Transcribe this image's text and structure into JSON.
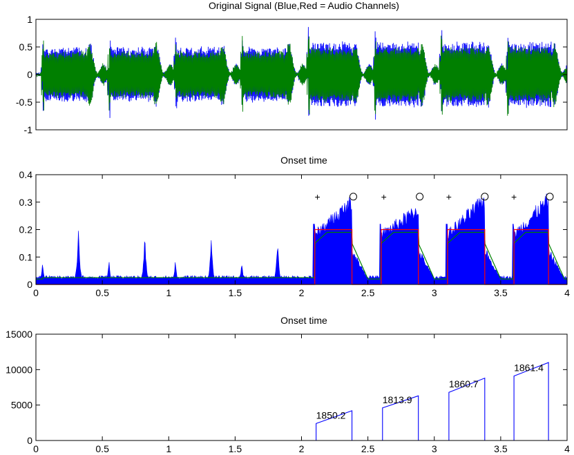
{
  "chart_data": [
    {
      "type": "line",
      "title": "Original Signal (Blue,Red = Audio Channels)",
      "xlim": [
        0,
        4
      ],
      "ylim": [
        -1,
        1
      ],
      "xticks": [],
      "yticks": [
        "-1",
        "-0.5",
        "0",
        "0.5",
        "1"
      ],
      "grid": false,
      "colors": {
        "channel1": "#0000ff",
        "channel2": "#007f00"
      },
      "note_bursts": [
        {
          "start": 0.05,
          "end": 0.38,
          "amp": 0.38
        },
        {
          "start": 0.55,
          "end": 0.88,
          "amp": 0.38
        },
        {
          "start": 1.05,
          "end": 1.38,
          "amp": 0.38
        },
        {
          "start": 1.55,
          "end": 1.88,
          "amp": 0.38
        },
        {
          "start": 2.05,
          "end": 2.38,
          "amp": 0.45
        },
        {
          "start": 2.55,
          "end": 2.88,
          "amp": 0.45
        },
        {
          "start": 3.05,
          "end": 3.38,
          "amp": 0.45
        },
        {
          "start": 3.55,
          "end": 3.88,
          "amp": 0.45
        }
      ]
    },
    {
      "type": "area",
      "title": "Onset time",
      "xlim": [
        0,
        4
      ],
      "ylim": [
        0,
        0.4
      ],
      "xticks": [
        "0",
        "0.5",
        "1",
        "1.5",
        "2",
        "2.5",
        "3",
        "3.5",
        "4"
      ],
      "yticks": [
        "0",
        "0.1",
        "0.2",
        "0.3",
        "0.4"
      ],
      "colors": {
        "energy": "#0000ff",
        "smoothed": "#007f00",
        "gate": "#ff0000"
      },
      "spikes": [
        {
          "x": 0.05,
          "peak": 0.09
        },
        {
          "x": 0.32,
          "peak": 0.22
        },
        {
          "x": 0.55,
          "peak": 0.09
        },
        {
          "x": 0.82,
          "peak": 0.195
        },
        {
          "x": 1.05,
          "peak": 0.09
        },
        {
          "x": 1.32,
          "peak": 0.19
        },
        {
          "x": 1.55,
          "peak": 0.09
        },
        {
          "x": 1.82,
          "peak": 0.18
        }
      ],
      "segments": [
        {
          "start": 2.1,
          "end": 2.38,
          "peak": 0.33
        },
        {
          "start": 2.6,
          "end": 2.88,
          "peak": 0.3
        },
        {
          "start": 3.1,
          "end": 3.38,
          "peak": 0.34
        },
        {
          "start": 3.6,
          "end": 3.86,
          "peak": 0.34
        }
      ],
      "gate_level": 0.2,
      "onset_markers": [
        2.12,
        2.62,
        3.11,
        3.6
      ],
      "offset_markers": [
        2.39,
        2.89,
        3.38,
        3.87
      ],
      "marker_y": 0.32,
      "onset_symbol": "+",
      "offset_symbol": "○"
    },
    {
      "type": "line",
      "title": "Onset time",
      "xlim": [
        0,
        4
      ],
      "ylim": [
        0,
        15000
      ],
      "xticks": [
        "0",
        "0.5",
        "1",
        "1.5",
        "2",
        "2.5",
        "3",
        "3.5",
        "4"
      ],
      "yticks": [
        "0",
        "5000",
        "10000",
        "15000"
      ],
      "colors": {
        "line": "#0000ff"
      },
      "ramps": [
        {
          "start": 2.11,
          "end": 2.38,
          "y0": 2400,
          "y1": 4200,
          "label": "1850.2"
        },
        {
          "start": 2.61,
          "end": 2.88,
          "y0": 4600,
          "y1": 6300,
          "label": "1813.9"
        },
        {
          "start": 3.11,
          "end": 3.38,
          "y0": 6800,
          "y1": 8800,
          "label": "1860.7"
        },
        {
          "start": 3.6,
          "end": 3.86,
          "y0": 9100,
          "y1": 11000,
          "label": "1861.4"
        }
      ]
    }
  ]
}
